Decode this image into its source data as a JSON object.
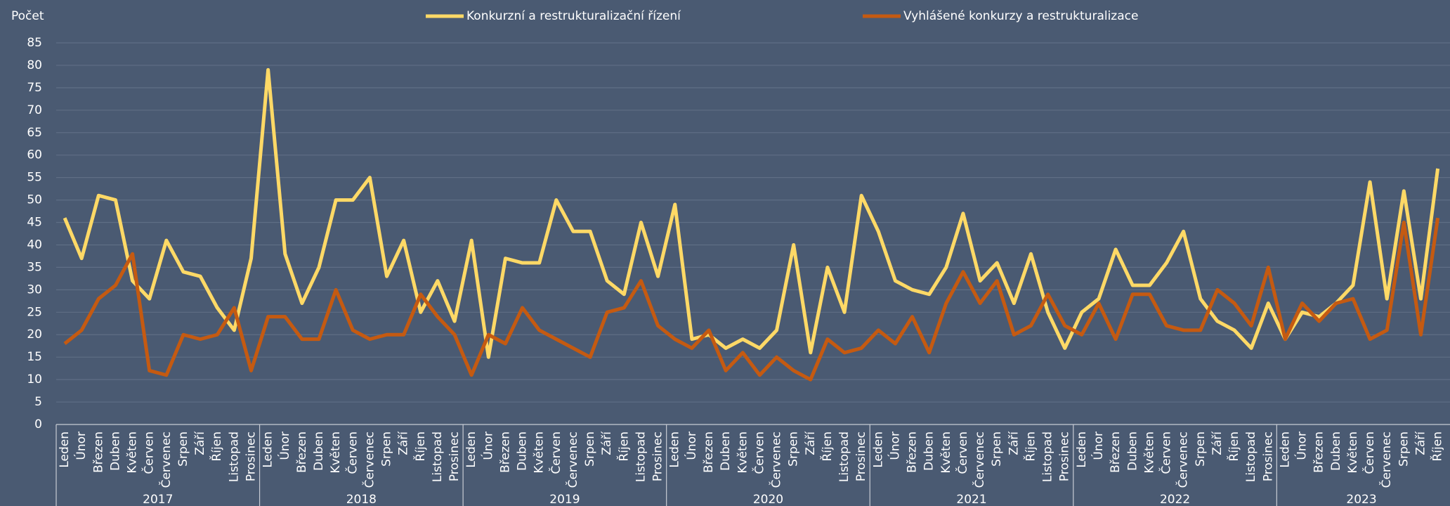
{
  "chart_data": {
    "type": "line",
    "y_label": "Počet",
    "groups": [
      {
        "label": "2017",
        "categories": [
          "Leden",
          "Únor",
          "Březen",
          "Duben",
          "Květen",
          "Červen",
          "Červenec",
          "Srpen",
          "Září",
          "Říjen",
          "Listopad",
          "Prosinec"
        ]
      },
      {
        "label": "2018",
        "categories": [
          "Leden",
          "Únor",
          "Březen",
          "Duben",
          "Květen",
          "Červen",
          "Červenec",
          "Srpen",
          "Září",
          "Říjen",
          "Listopad",
          "Prosinec"
        ]
      },
      {
        "label": "2019",
        "categories": [
          "Leden",
          "Únor",
          "Březen",
          "Duben",
          "Květen",
          "Červen",
          "Červenec",
          "Srpen",
          "Září",
          "Říjen",
          "Listopad",
          "Prosinec"
        ]
      },
      {
        "label": "2020",
        "categories": [
          "Leden",
          "Únor",
          "Březen",
          "Duben",
          "Květen",
          "Červen",
          "Červenec",
          "Srpen",
          "Září",
          "Říjen",
          "Listopad",
          "Prosinec"
        ]
      },
      {
        "label": "2021",
        "categories": [
          "Leden",
          "Únor",
          "Březen",
          "Duben",
          "Květen",
          "Červen",
          "Červenec",
          "Srpen",
          "Září",
          "Říjen",
          "Listopad",
          "Prosinec"
        ]
      },
      {
        "label": "2022",
        "categories": [
          "Leden",
          "Únor",
          "Březen",
          "Duben",
          "Květen",
          "Červen",
          "Červenec",
          "Srpen",
          "Září",
          "Říjen",
          "Listopad",
          "Prosinec"
        ]
      },
      {
        "label": "2023",
        "categories": [
          "Leden",
          "Únor",
          "Březen",
          "Duben",
          "Květen",
          "Červen",
          "Červenec",
          "Srpen",
          "Září",
          "Říjen"
        ]
      }
    ],
    "series": [
      {
        "name": "Konkurzní a restrukturalizační řízení",
        "color": "#ffd966",
        "values": [
          46,
          37,
          51,
          50,
          32,
          28,
          41,
          34,
          33,
          26,
          21,
          37,
          79,
          38,
          27,
          35,
          50,
          50,
          55,
          33,
          41,
          25,
          32,
          23,
          41,
          15,
          37,
          36,
          36,
          50,
          43,
          43,
          32,
          29,
          45,
          33,
          49,
          19,
          20,
          17,
          19,
          17,
          21,
          40,
          16,
          35,
          25,
          51,
          43,
          32,
          30,
          29,
          35,
          47,
          32,
          36,
          27,
          38,
          25,
          17,
          25,
          28,
          39,
          31,
          31,
          36,
          43,
          28,
          23,
          21,
          17,
          27,
          19,
          25,
          24,
          27,
          31,
          54,
          28,
          52,
          28,
          57
        ]
      },
      {
        "name": "Vyhlášené konkurzy a restrukturalizace",
        "color": "#c55a11",
        "values": [
          18,
          21,
          28,
          31,
          38,
          12,
          11,
          20,
          19,
          20,
          26,
          12,
          24,
          24,
          19,
          19,
          30,
          21,
          19,
          20,
          20,
          29,
          24,
          20,
          11,
          20,
          18,
          26,
          21,
          19,
          17,
          15,
          25,
          26,
          32,
          22,
          19,
          17,
          21,
          12,
          16,
          11,
          15,
          12,
          10,
          19,
          16,
          17,
          21,
          18,
          24,
          16,
          27,
          34,
          27,
          32,
          20,
          22,
          29,
          22,
          20,
          27,
          19,
          29,
          29,
          22,
          21,
          21,
          30,
          27,
          22,
          35,
          19,
          27,
          23,
          27,
          28,
          19,
          21,
          45,
          20,
          46
        ]
      }
    ],
    "ylim": [
      0,
      85
    ],
    "yticks": [
      0,
      5,
      10,
      15,
      20,
      25,
      30,
      35,
      40,
      45,
      50,
      55,
      60,
      65,
      70,
      75,
      80,
      85
    ],
    "grid": true
  }
}
